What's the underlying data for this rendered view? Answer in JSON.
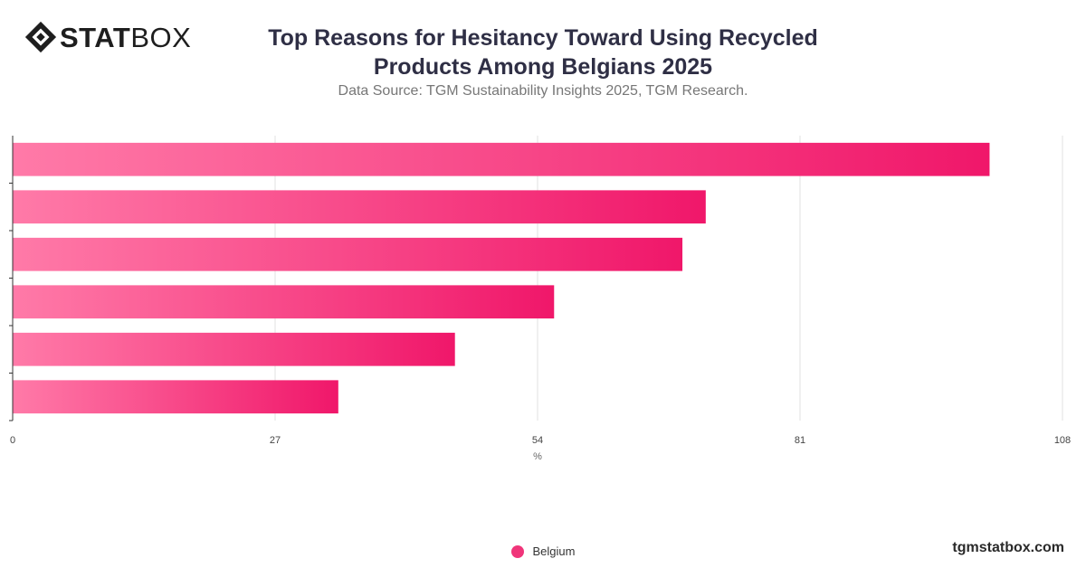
{
  "brand": {
    "logo_bold": "STAT",
    "logo_light": "BOX",
    "watermark": "tgmstatbox.com"
  },
  "chart_data": {
    "type": "bar",
    "orientation": "horizontal",
    "title": "Top Reasons for Hesitancy Toward Using Recycled Products Among Belgians 2025",
    "subtitle": "Data Source: TGM Sustainability Insights 2025, TGM Research.",
    "xlabel": "%",
    "ylabel": "",
    "xlim": [
      0,
      108
    ],
    "xticks": [
      0,
      27,
      54,
      81,
      108
    ],
    "grid": true,
    "legend_position": "bottom",
    "categories": [
      "",
      "",
      "",
      "",
      "",
      ""
    ],
    "series": [
      {
        "name": "Belgium",
        "values": [
          100.5,
          71.3,
          68.9,
          55.7,
          45.5,
          33.5
        ]
      }
    ],
    "colors": {
      "bar_start": "#ff7aa8",
      "bar_end": "#f0176a",
      "legend": "#f0357a",
      "grid": "#e2e2e2",
      "axis": "#333333"
    }
  }
}
